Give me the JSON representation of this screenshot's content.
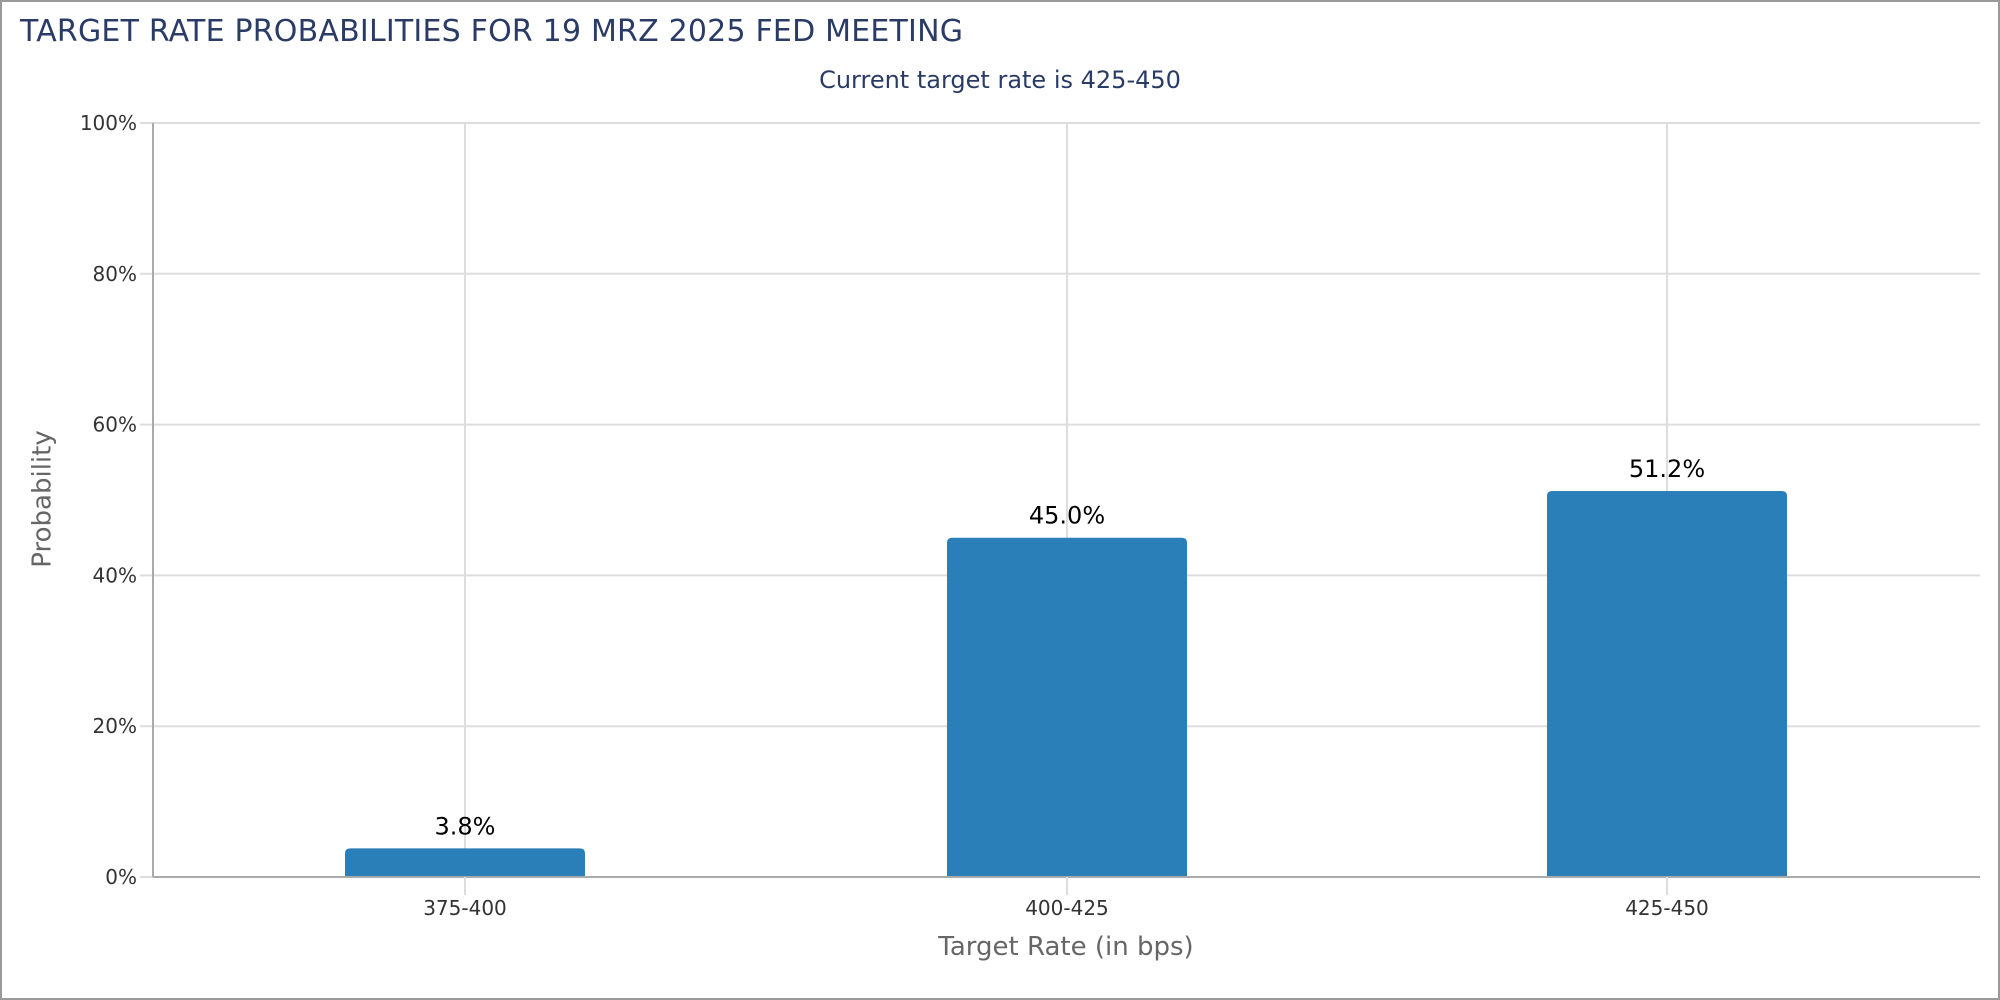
{
  "header": {
    "title": "TARGET RATE PROBABILITIES FOR 19 MRZ 2025 FED MEETING",
    "subtitle": "Current target rate is 425-450"
  },
  "colors": {
    "bar": "#2a7fb8",
    "title": "#2a3b66",
    "grid": "#dddddd",
    "axis": "#aaaaaa",
    "axis_title": "#666666"
  },
  "chart_data": {
    "type": "bar",
    "title": "TARGET RATE PROBABILITIES FOR 19 MRZ 2025 FED MEETING",
    "subtitle": "Current target rate is 425-450",
    "categories": [
      "375-400",
      "400-425",
      "425-450"
    ],
    "values": [
      3.8,
      45.0,
      51.2
    ],
    "data_labels": [
      "3.8%",
      "45.0%",
      "51.2%"
    ],
    "xlabel": "Target Rate (in bps)",
    "ylabel": "Probability",
    "ylim": [
      0,
      100
    ],
    "yticks": [
      "0%",
      "20%",
      "40%",
      "60%",
      "80%",
      "100%"
    ],
    "grid": true,
    "legend": "none"
  }
}
